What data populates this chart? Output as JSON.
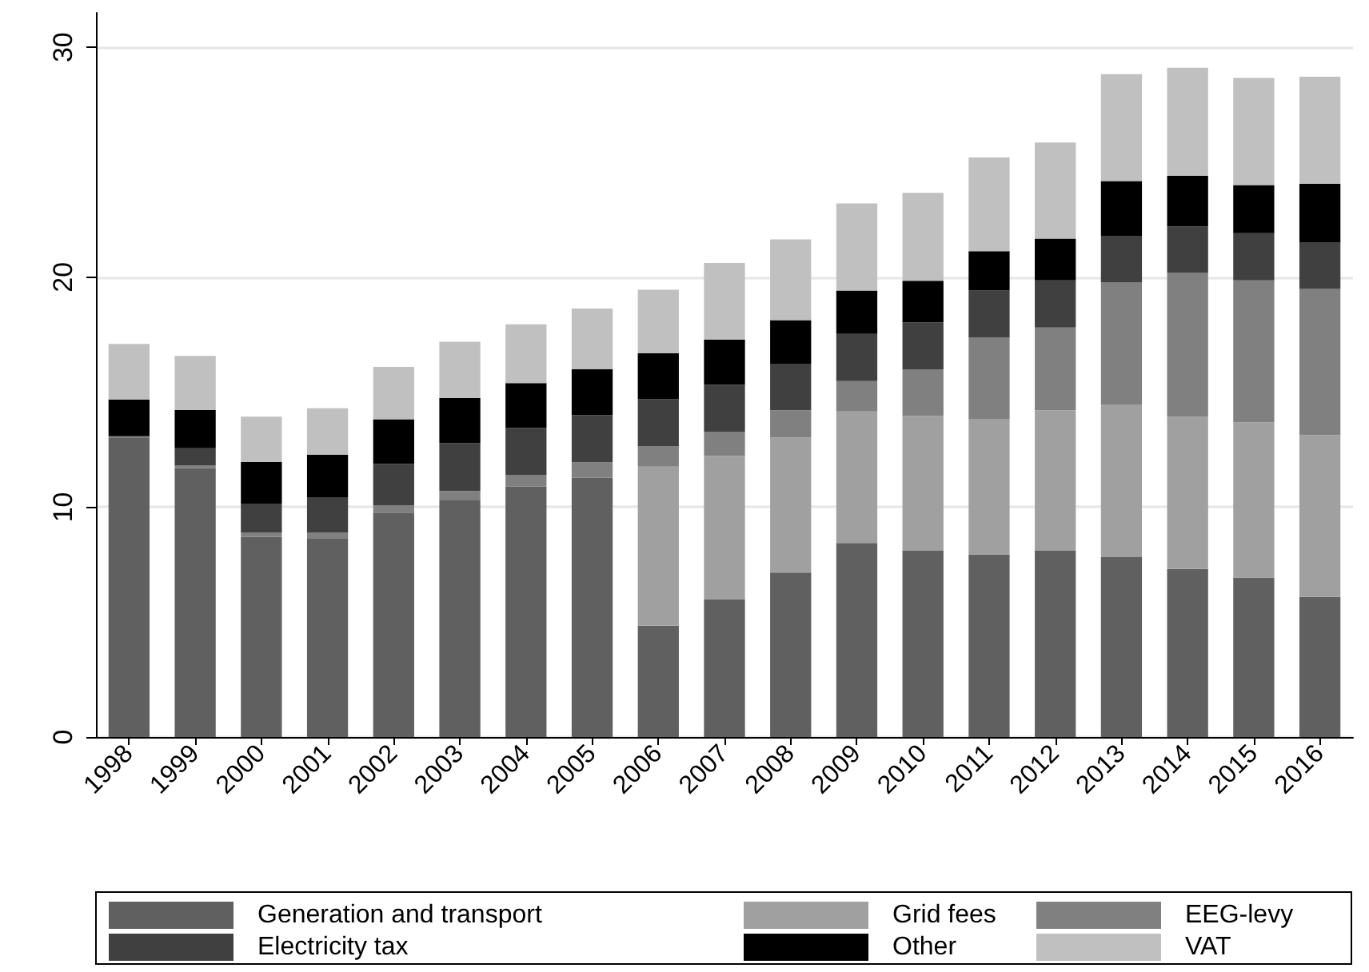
{
  "chart_data": {
    "type": "bar",
    "stacked": true,
    "categories": [
      "1998",
      "1999",
      "2000",
      "2001",
      "2002",
      "2003",
      "2004",
      "2005",
      "2006",
      "2007",
      "2008",
      "2009",
      "2010",
      "2011",
      "2012",
      "2013",
      "2014",
      "2015",
      "2016"
    ],
    "series": [
      {
        "name": "Generation and transport",
        "color": "#606060",
        "values": [
          13.0,
          11.7,
          8.7,
          8.65,
          9.76,
          10.29,
          10.89,
          11.28,
          4.84,
          6.0,
          7.15,
          8.44,
          8.1,
          7.94,
          8.1,
          7.82,
          7.31,
          6.94,
          6.09
        ]
      },
      {
        "name": "Grid fees",
        "color": "#a0a0a0",
        "values": [
          0,
          0,
          0,
          0,
          0,
          0,
          0,
          0,
          6.92,
          6.23,
          5.88,
          5.72,
          5.86,
          5.9,
          6.11,
          6.64,
          6.62,
          6.74,
          7.04
        ]
      },
      {
        "name": "EEG-levy",
        "color": "#808080",
        "values": [
          0.08,
          0.1,
          0.18,
          0.23,
          0.32,
          0.41,
          0.51,
          0.67,
          0.88,
          1.03,
          1.18,
          1.32,
          2.03,
          3.53,
          3.6,
          5.31,
          6.25,
          6.18,
          6.36
        ]
      },
      {
        "name": "Electricity tax",
        "color": "#404040",
        "values": [
          0,
          0.76,
          1.27,
          1.55,
          1.8,
          2.08,
          2.05,
          2.05,
          2.05,
          2.06,
          2.03,
          2.05,
          2.05,
          2.05,
          2.05,
          2.03,
          2.03,
          2.05,
          2.03
        ]
      },
      {
        "name": "Other",
        "color": "#000000",
        "values": [
          1.6,
          1.66,
          1.82,
          1.84,
          1.94,
          1.96,
          1.94,
          2.0,
          2.01,
          1.96,
          1.89,
          1.89,
          1.8,
          1.71,
          1.82,
          2.38,
          2.2,
          2.1,
          2.54
        ]
      },
      {
        "name": "VAT",
        "color": "#c0c0c0",
        "values": [
          2.42,
          2.36,
          1.96,
          2.03,
          2.28,
          2.45,
          2.56,
          2.64,
          2.75,
          3.34,
          3.51,
          3.79,
          3.83,
          4.08,
          4.18,
          4.65,
          4.7,
          4.66,
          4.66
        ]
      }
    ],
    "ylim": [
      0,
      31.5
    ],
    "yticks": [
      0,
      10,
      20,
      30
    ],
    "grid": "y",
    "legend": "bottom"
  }
}
